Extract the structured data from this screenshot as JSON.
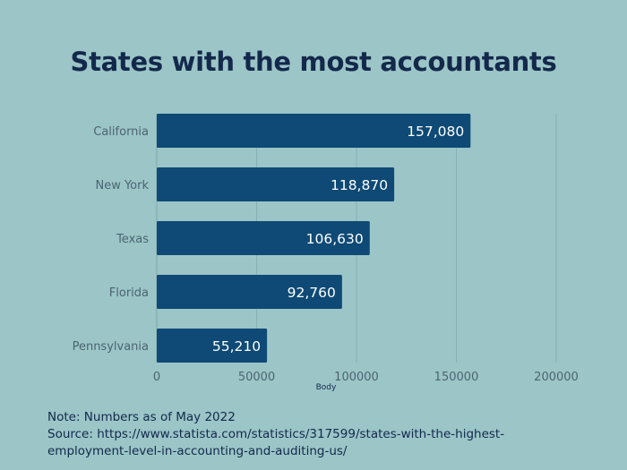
{
  "chart_data": {
    "type": "bar",
    "orientation": "horizontal",
    "title": "States with the most accountants",
    "categories": [
      "California",
      "New York",
      "Texas",
      "Florida",
      "Pennsylvania"
    ],
    "values": [
      157080,
      118870,
      106630,
      92760,
      55210
    ],
    "data_labels": [
      "157,080",
      "118,870",
      "106,630",
      "92,760",
      "55,210"
    ],
    "xlabel": "Body",
    "ylabel": "",
    "xlim": [
      0,
      200000
    ],
    "xticks": [
      "0",
      "50000",
      "100000",
      "150000",
      "200000"
    ],
    "grid": "vertical",
    "colors": {
      "bar": "#0e4a75",
      "background": "#9bc5c7",
      "title": "#13294b",
      "grid": "#86b0b3"
    }
  },
  "notes": {
    "note": "Note: Numbers as of May 2022",
    "source_line1": "Source: https://www.statista.com/statistics/317599/states-with-the-highest-",
    "source_line2": "employment-level-in-accounting-and-auditing-us/"
  }
}
